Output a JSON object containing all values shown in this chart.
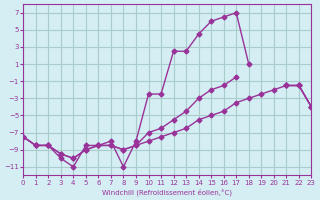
{
  "xlabel": "Windchill (Refroidissement éolien,°C)",
  "bg_color": "#d4eef4",
  "grid_color": "#aacccc",
  "line_color": "#993399",
  "xlim": [
    0,
    23
  ],
  "ylim": [
    -12,
    8
  ],
  "xticks": [
    0,
    1,
    2,
    3,
    4,
    5,
    6,
    7,
    8,
    9,
    10,
    11,
    12,
    13,
    14,
    15,
    16,
    17,
    18,
    19,
    20,
    21,
    22,
    23
  ],
  "yticks": [
    -11,
    -9,
    -7,
    -5,
    -3,
    -1,
    1,
    3,
    5,
    7
  ],
  "line1_x": [
    0,
    1,
    2,
    3,
    4,
    5,
    6,
    7,
    8,
    9,
    10,
    11,
    12,
    13,
    14,
    15,
    16,
    17,
    18,
    19,
    20,
    21,
    22,
    23
  ],
  "line1_y": [
    -7.5,
    -8.5,
    -8.5,
    -10,
    -11,
    -8.5,
    -8.5,
    -8,
    -11,
    -8,
    -2.5,
    -2.5,
    2.5,
    2.5,
    4.5,
    6,
    6.5,
    7,
    1,
    null,
    null,
    -1.5,
    -1.5,
    -4
  ],
  "line2_x": [
    0,
    1,
    2,
    3,
    4,
    5,
    6,
    7,
    8,
    9,
    10,
    11,
    12,
    13,
    14,
    15,
    16,
    17,
    18,
    19,
    20,
    21,
    22,
    23
  ],
  "line2_y": [
    -7.5,
    -8.5,
    -8.5,
    -9.5,
    -10,
    -9,
    -8.5,
    -8.5,
    -9,
    -8.5,
    -7,
    -6.5,
    -5.5,
    -4.5,
    -3,
    -2,
    -1.5,
    -0.5,
    null,
    null,
    null,
    -1.5,
    -1.5,
    -4
  ],
  "line3_x": [
    0,
    1,
    2,
    3,
    4,
    5,
    6,
    7,
    8,
    9,
    10,
    11,
    12,
    13,
    14,
    15,
    16,
    17,
    18,
    19,
    20,
    21,
    22,
    23
  ],
  "line3_y": [
    -7.5,
    -8.5,
    -8.5,
    -9.5,
    -10,
    -9,
    -8.5,
    -8.5,
    -9,
    -8.5,
    -8,
    -7.5,
    -7,
    -6.5,
    -5.5,
    -5,
    -4.5,
    -3.5,
    -3,
    -2.5,
    -2,
    -1.5,
    -1.5,
    -4
  ]
}
